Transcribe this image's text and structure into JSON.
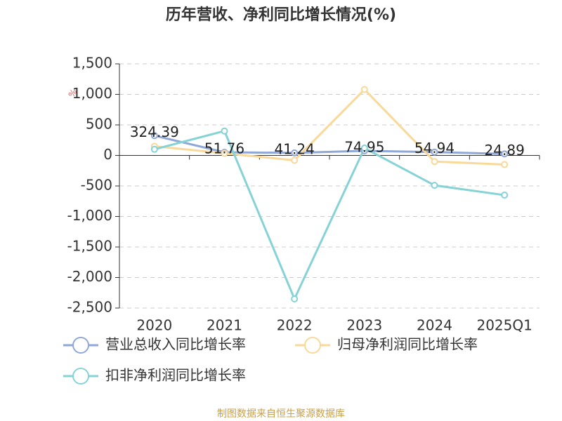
{
  "chart_data": {
    "type": "line",
    "title": "历年营收、净利同比增长情况(%)",
    "y_label": "%",
    "source": "制图数据来自恒生聚源数据库",
    "categories": [
      "2020",
      "2021",
      "2022",
      "2023",
      "2024",
      "2025Q1"
    ],
    "series": [
      {
        "name": "营业总收入同比增长率",
        "color": "#8fa8d8",
        "values": [
          324.39,
          51.76,
          41.24,
          74.95,
          54.94,
          24.89
        ]
      },
      {
        "name": "归母净利润同比增长率",
        "color": "#f9d99a",
        "values": [
          150,
          35,
          -80,
          1080,
          -100,
          -150
        ]
      },
      {
        "name": "扣非净利润同比增长率",
        "color": "#86d3d6",
        "values": [
          100,
          400,
          -2350,
          120,
          -490,
          -650
        ]
      }
    ],
    "ylim": [
      -2500,
      1500
    ],
    "yticks": [
      {
        "value": -2500,
        "label": "-2,500"
      },
      {
        "value": -2000,
        "label": "-2,000"
      },
      {
        "value": -1500,
        "label": "-1,500"
      },
      {
        "value": -1000,
        "label": "-1,000"
      },
      -500,
      0,
      500,
      {
        "value": 1000,
        "label": "1,000"
      },
      {
        "value": 1500,
        "label": "1,500"
      }
    ],
    "grid": true
  }
}
